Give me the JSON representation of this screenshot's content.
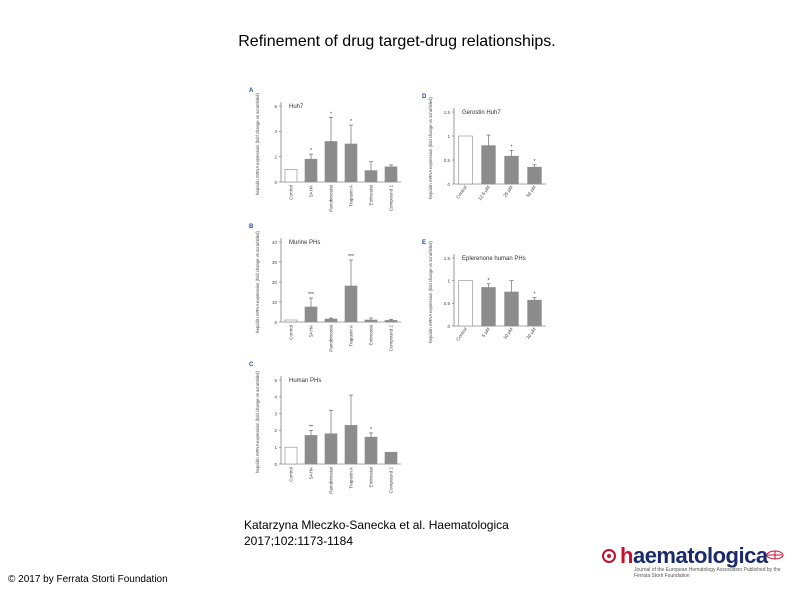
{
  "title": "Refinement of drug target-drug relationships.",
  "citation": {
    "line1": "Katarzyna Mleczko-Sanecka et al. Haematologica",
    "line2": "2017;102:1173-1184"
  },
  "copyright": "© 2017 by Ferrata Storti Foundation",
  "logo": {
    "word_initial": "h",
    "word_rest": "aematologica",
    "subtitle": "Journal of the European Hematology Association Published by the Ferrata Storti Foundation"
  },
  "colors": {
    "bar": "#8c8c8c",
    "control_bar": "#ffffff",
    "outline": "#555555"
  },
  "chart_data": [
    {
      "panel": "A",
      "type": "bar",
      "title": "Huh7",
      "ylabel": "hepcidin mRNA expression (fold change vs scrambled)",
      "ylim": [
        0,
        6
      ],
      "yticks": [
        0,
        2,
        4,
        6
      ],
      "categories": [
        "Control",
        "SAHA",
        "Panobinostat",
        "Trapoxin A",
        "Entinostat",
        "Compound 2"
      ],
      "values": [
        1.0,
        1.8,
        3.2,
        3.0,
        0.9,
        1.2
      ],
      "errors": [
        0,
        0.4,
        1.9,
        1.5,
        0.7,
        0.15
      ],
      "stars": [
        "",
        "*",
        "*",
        "*",
        "",
        ""
      ],
      "control_index": 0
    },
    {
      "panel": "B",
      "type": "bar",
      "title": "Murine PHs",
      "ylabel": "hepcidin mRNA expression (fold change vs scrambled)",
      "ylim": [
        0,
        40
      ],
      "yticks": [
        0,
        10,
        20,
        30,
        40
      ],
      "categories": [
        "Control",
        "SAHA",
        "Panobinostat",
        "Trapoxin A",
        "Entinostat",
        "Compound 2"
      ],
      "values": [
        1.0,
        7.5,
        1.5,
        18.0,
        1.0,
        0.8
      ],
      "errors": [
        0,
        4.5,
        0.5,
        13.0,
        1.0,
        0.5
      ],
      "stars": [
        "",
        "***",
        "",
        "***",
        "",
        ""
      ],
      "control_index": 0
    },
    {
      "panel": "C",
      "type": "bar",
      "title": "Human PHs",
      "ylabel": "hepcidin mRNA expression (fold change vs scrambled)",
      "ylim": [
        0,
        5
      ],
      "yticks": [
        0,
        1,
        2,
        3,
        4,
        5
      ],
      "categories": [
        "Control",
        "SAHA",
        "Panobinostat",
        "Trapoxin A",
        "Entinostat",
        "Compound 2"
      ],
      "values": [
        1.0,
        1.7,
        1.8,
        2.3,
        1.6,
        0.7
      ],
      "errors": [
        0,
        0.3,
        1.4,
        1.8,
        0.25,
        0
      ],
      "stars": [
        "",
        "**",
        "",
        "",
        "*",
        ""
      ],
      "control_index": 0
    },
    {
      "panel": "D",
      "type": "bar",
      "title": "Gerostin Huh7",
      "ylabel": "hepcidin mRNA expression (fold change vs scrambled)",
      "ylim": [
        0,
        1.5
      ],
      "yticks": [
        0,
        0.5,
        1.0,
        1.5
      ],
      "categories": [
        "Control",
        "12.5 µM",
        "25 µM",
        "50 µM"
      ],
      "values": [
        1.0,
        0.8,
        0.58,
        0.35
      ],
      "errors": [
        0,
        0.22,
        0.12,
        0.05
      ],
      "stars": [
        "",
        "",
        "*",
        "*"
      ],
      "control_index": 0
    },
    {
      "panel": "E",
      "type": "bar",
      "title": "Eplerenone human PHs",
      "ylabel": "hepcidin mRNA expression (fold change vs scrambled)",
      "ylim": [
        0,
        1.5
      ],
      "yticks": [
        0,
        0.5,
        1.0,
        1.5
      ],
      "categories": [
        "Control",
        "5 µM",
        "10 µM",
        "20 µM"
      ],
      "values": [
        1.0,
        0.85,
        0.75,
        0.57
      ],
      "errors": [
        0,
        0.08,
        0.25,
        0.06
      ],
      "stars": [
        "",
        "*",
        "",
        "*"
      ],
      "control_index": 0
    }
  ]
}
